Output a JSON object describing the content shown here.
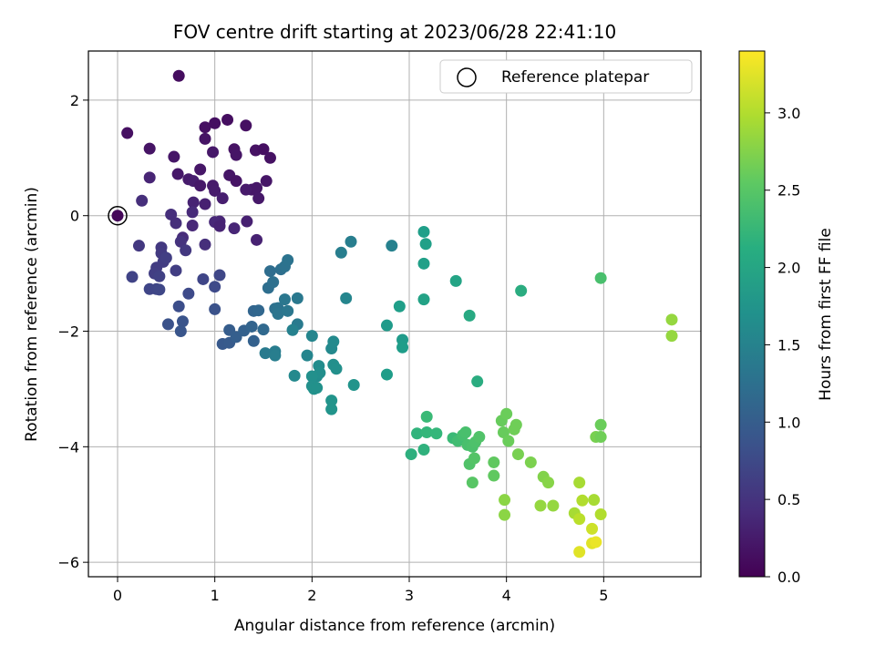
{
  "chart_data": {
    "type": "scatter",
    "title": "FOV centre drift starting at 2023/06/28 22:41:10",
    "xlabel": "Angular distance from reference (arcmin)",
    "ylabel": "Rotation from reference (arcmin)",
    "xlim": [
      -0.3,
      6.0
    ],
    "ylim": [
      -6.25,
      2.85
    ],
    "xticks": [
      0,
      1,
      2,
      3,
      4,
      5
    ],
    "yticks": [
      2,
      0,
      -2,
      -4,
      -6
    ],
    "xtick_labels": [
      "0",
      "1",
      "2",
      "3",
      "4",
      "5"
    ],
    "ytick_labels": [
      "2",
      "0",
      "−2",
      "−4",
      "−6"
    ],
    "grid": true,
    "legend": {
      "placement": "top-right",
      "entries": [
        "Reference platepar"
      ]
    },
    "colorbar": {
      "label": "Hours from first FF file",
      "colormap": "viridis",
      "range": [
        0.0,
        3.4
      ],
      "ticks": [
        0.0,
        0.5,
        1.0,
        1.5,
        2.0,
        2.5,
        3.0
      ],
      "tick_labels": [
        "0.0",
        "0.5",
        "1.0",
        "1.5",
        "2.0",
        "2.5",
        "3.0"
      ]
    },
    "reference_point": {
      "x": 0,
      "y": 0
    },
    "points": [
      [
        0.1,
        1.43,
        0.15
      ],
      [
        0.63,
        2.42,
        0.12
      ],
      [
        0.33,
        1.16,
        0.18
      ],
      [
        0.9,
        1.53,
        0.15
      ],
      [
        1.0,
        1.6,
        0.14
      ],
      [
        1.13,
        1.66,
        0.13
      ],
      [
        1.32,
        1.56,
        0.15
      ],
      [
        0.9,
        1.33,
        0.18
      ],
      [
        0.58,
        1.02,
        0.2
      ],
      [
        0.98,
        1.1,
        0.22
      ],
      [
        1.2,
        1.15,
        0.17
      ],
      [
        1.22,
        1.05,
        0.19
      ],
      [
        1.42,
        1.13,
        0.16
      ],
      [
        1.5,
        1.15,
        0.14
      ],
      [
        1.57,
        1.0,
        0.16
      ],
      [
        0.85,
        0.8,
        0.2
      ],
      [
        0.62,
        0.72,
        0.22
      ],
      [
        0.73,
        0.63,
        0.25
      ],
      [
        0.78,
        0.6,
        0.27
      ],
      [
        0.85,
        0.52,
        0.22
      ],
      [
        0.98,
        0.52,
        0.24
      ],
      [
        1.0,
        0.43,
        0.25
      ],
      [
        1.15,
        0.7,
        0.2
      ],
      [
        1.22,
        0.6,
        0.18
      ],
      [
        1.38,
        0.45,
        0.2
      ],
      [
        1.43,
        0.48,
        0.21
      ],
      [
        1.45,
        0.3,
        0.22
      ],
      [
        1.53,
        0.6,
        0.2
      ],
      [
        0.9,
        0.2,
        0.3
      ],
      [
        0.78,
        0.23,
        0.33
      ],
      [
        1.08,
        0.3,
        0.28
      ],
      [
        1.32,
        0.45,
        0.24
      ],
      [
        0.33,
        0.66,
        0.35
      ],
      [
        0.25,
        0.26,
        0.45
      ],
      [
        0.55,
        0.02,
        0.45
      ],
      [
        0.77,
        0.06,
        0.4
      ],
      [
        0.6,
        -0.13,
        0.45
      ],
      [
        0.67,
        -0.38,
        0.43
      ],
      [
        0.77,
        -0.17,
        0.38
      ],
      [
        1.05,
        -0.1,
        0.35
      ],
      [
        1.0,
        -0.11,
        0.38
      ],
      [
        1.05,
        -0.18,
        0.33
      ],
      [
        1.33,
        -0.1,
        0.3
      ],
      [
        1.2,
        -0.22,
        0.36
      ],
      [
        1.43,
        -0.42,
        0.32
      ],
      [
        0.9,
        -0.5,
        0.45
      ],
      [
        0.65,
        -0.45,
        0.5
      ],
      [
        0.7,
        -0.6,
        0.55
      ],
      [
        0.45,
        -0.55,
        0.55
      ],
      [
        0.22,
        -0.52,
        0.55
      ],
      [
        0.45,
        -0.65,
        0.58
      ],
      [
        0.47,
        -0.8,
        0.6
      ],
      [
        0.5,
        -0.73,
        0.62
      ],
      [
        0.4,
        -0.9,
        0.6
      ],
      [
        0.38,
        -1.0,
        0.62
      ],
      [
        0.43,
        -1.05,
        0.65
      ],
      [
        0.6,
        -0.95,
        0.62
      ],
      [
        0.15,
        -1.06,
        0.68
      ],
      [
        0.33,
        -1.27,
        0.7
      ],
      [
        0.4,
        -1.27,
        0.7
      ],
      [
        0.43,
        -1.28,
        0.72
      ],
      [
        0.73,
        -1.35,
        0.75
      ],
      [
        0.88,
        -1.1,
        0.7
      ],
      [
        1.0,
        -1.23,
        0.75
      ],
      [
        1.05,
        -1.03,
        0.72
      ],
      [
        0.63,
        -1.57,
        0.8
      ],
      [
        0.52,
        -1.88,
        0.85
      ],
      [
        0.67,
        -1.83,
        0.88
      ],
      [
        0.65,
        -2.0,
        0.9
      ],
      [
        1.0,
        -1.62,
        0.85
      ],
      [
        1.08,
        -2.22,
        0.95
      ],
      [
        1.15,
        -2.2,
        0.97
      ],
      [
        1.15,
        -1.98,
        1.0
      ],
      [
        1.22,
        -2.1,
        1.02
      ],
      [
        1.3,
        -1.99,
        1.05
      ],
      [
        1.38,
        -1.92,
        1.08
      ],
      [
        1.4,
        -2.17,
        1.05
      ],
      [
        1.4,
        -1.65,
        1.1
      ],
      [
        1.45,
        -1.64,
        1.12
      ],
      [
        1.5,
        -1.97,
        1.15
      ],
      [
        1.57,
        -0.96,
        1.2
      ],
      [
        1.55,
        -1.25,
        1.22
      ],
      [
        1.62,
        -1.61,
        1.25
      ],
      [
        1.68,
        -0.93,
        1.23
      ],
      [
        1.72,
        -0.88,
        1.28
      ],
      [
        1.75,
        -0.77,
        1.3
      ],
      [
        1.6,
        -1.15,
        1.25
      ],
      [
        1.65,
        -1.6,
        1.3
      ],
      [
        1.65,
        -1.7,
        1.32
      ],
      [
        1.72,
        -1.45,
        1.35
      ],
      [
        1.75,
        -1.65,
        1.35
      ],
      [
        1.85,
        -1.43,
        1.37
      ],
      [
        1.85,
        -1.88,
        1.4
      ],
      [
        1.52,
        -2.38,
        1.4
      ],
      [
        1.62,
        -2.35,
        1.43
      ],
      [
        1.62,
        -2.42,
        1.45
      ],
      [
        2.3,
        -0.64,
        1.45
      ],
      [
        2.4,
        -0.45,
        1.45
      ],
      [
        2.82,
        -0.52,
        1.5
      ],
      [
        2.35,
        -1.43,
        1.55
      ],
      [
        1.8,
        -1.98,
        1.5
      ],
      [
        1.95,
        -2.42,
        1.55
      ],
      [
        2.0,
        -2.08,
        1.55
      ],
      [
        2.2,
        -2.3,
        1.6
      ],
      [
        2.22,
        -2.18,
        1.62
      ],
      [
        1.82,
        -2.77,
        1.6
      ],
      [
        2.05,
        -2.78,
        1.65
      ],
      [
        2.07,
        -2.6,
        1.65
      ],
      [
        2.08,
        -2.72,
        1.67
      ],
      [
        2.22,
        -2.58,
        1.68
      ],
      [
        2.25,
        -2.65,
        1.7
      ],
      [
        2.0,
        -2.78,
        1.7
      ],
      [
        2.0,
        -2.95,
        1.7
      ],
      [
        2.02,
        -3.0,
        1.72
      ],
      [
        2.05,
        -2.98,
        1.72
      ],
      [
        2.43,
        -2.93,
        1.75
      ],
      [
        2.2,
        -3.2,
        1.75
      ],
      [
        2.2,
        -3.35,
        1.75
      ],
      [
        2.77,
        -1.9,
        1.85
      ],
      [
        2.93,
        -2.15,
        1.85
      ],
      [
        2.93,
        -2.28,
        1.88
      ],
      [
        2.77,
        -2.75,
        1.88
      ],
      [
        2.9,
        -1.57,
        1.9
      ],
      [
        3.15,
        -0.28,
        1.9
      ],
      [
        3.17,
        -0.49,
        1.92
      ],
      [
        3.15,
        -0.83,
        1.92
      ],
      [
        3.15,
        -1.45,
        1.95
      ],
      [
        3.48,
        -1.13,
        1.98
      ],
      [
        3.62,
        -1.73,
        2.05
      ],
      [
        4.15,
        -1.3,
        2.1
      ],
      [
        3.7,
        -2.87,
        2.1
      ],
      [
        3.02,
        -4.13,
        2.15
      ],
      [
        3.15,
        -4.05,
        2.18
      ],
      [
        3.08,
        -3.77,
        2.2
      ],
      [
        3.18,
        -3.75,
        2.25
      ],
      [
        3.28,
        -3.77,
        2.25
      ],
      [
        3.18,
        -3.48,
        2.3
      ],
      [
        3.45,
        -3.85,
        2.3
      ],
      [
        3.5,
        -3.9,
        2.35
      ],
      [
        3.55,
        -3.8,
        2.38
      ],
      [
        3.58,
        -3.75,
        2.4
      ],
      [
        3.6,
        -3.97,
        2.4
      ],
      [
        3.65,
        -4.0,
        2.42
      ],
      [
        3.68,
        -3.92,
        2.43
      ],
      [
        3.72,
        -3.83,
        2.45
      ],
      [
        3.62,
        -4.3,
        2.45
      ],
      [
        3.67,
        -4.2,
        2.47
      ],
      [
        3.65,
        -4.62,
        2.5
      ],
      [
        3.87,
        -4.27,
        2.55
      ],
      [
        3.87,
        -4.5,
        2.55
      ],
      [
        3.95,
        -3.55,
        2.6
      ],
      [
        3.97,
        -3.75,
        2.6
      ],
      [
        4.0,
        -3.43,
        2.62
      ],
      [
        4.02,
        -3.9,
        2.62
      ],
      [
        4.08,
        -3.7,
        2.65
      ],
      [
        4.1,
        -3.62,
        2.65
      ],
      [
        4.12,
        -4.13,
        2.7
      ],
      [
        4.25,
        -4.27,
        2.72
      ],
      [
        4.38,
        -4.52,
        2.75
      ],
      [
        4.43,
        -4.62,
        2.78
      ],
      [
        3.98,
        -4.92,
        2.8
      ],
      [
        3.98,
        -5.18,
        2.8
      ],
      [
        4.35,
        -5.02,
        2.85
      ],
      [
        4.48,
        -5.02,
        2.85
      ],
      [
        4.7,
        -5.15,
        2.95
      ],
      [
        4.75,
        -5.25,
        3.05
      ],
      [
        4.75,
        -4.62,
        2.95
      ],
      [
        4.78,
        -4.93,
        3.0
      ],
      [
        4.88,
        -5.42,
        3.15
      ],
      [
        4.9,
        -4.92,
        2.95
      ],
      [
        4.88,
        -5.67,
        3.25
      ],
      [
        4.92,
        -5.65,
        3.3
      ],
      [
        4.75,
        -5.82,
        3.25
      ],
      [
        4.97,
        -5.17,
        3.0
      ],
      [
        4.92,
        -3.83,
        2.7
      ],
      [
        4.97,
        -3.83,
        2.65
      ],
      [
        4.97,
        -3.62,
        2.62
      ],
      [
        4.97,
        -1.08,
        2.4
      ],
      [
        5.7,
        -1.8,
        2.85
      ],
      [
        5.7,
        -2.08,
        2.85
      ]
    ]
  }
}
